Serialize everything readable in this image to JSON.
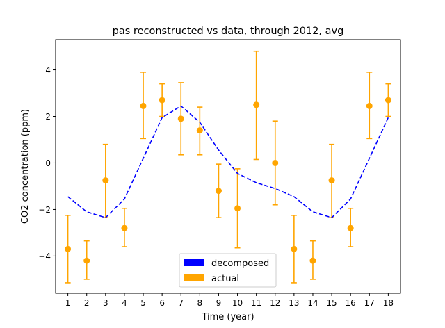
{
  "chart_data": {
    "type": "line",
    "title": "pas reconstructed vs data, through 2012, avg",
    "xlabel": "Time (year)",
    "ylabel": "CO2 concentration (ppm)",
    "xlim": [
      0.35,
      18.65
    ],
    "ylim": [
      -5.6,
      5.3
    ],
    "x": [
      1,
      2,
      3,
      4,
      5,
      6,
      7,
      8,
      9,
      10,
      11,
      12,
      13,
      14,
      15,
      16,
      17,
      18
    ],
    "x_ticks": [
      "1",
      "2",
      "3",
      "4",
      "5",
      "6",
      "7",
      "8",
      "9",
      "10",
      "11",
      "12",
      "13",
      "14",
      "15",
      "16",
      "17",
      "18"
    ],
    "y_ticks": [
      {
        "value": -4,
        "label": "−4"
      },
      {
        "value": -2,
        "label": "−2"
      },
      {
        "value": 0,
        "label": "0"
      },
      {
        "value": 2,
        "label": "2"
      },
      {
        "value": 4,
        "label": "4"
      }
    ],
    "grid": false,
    "legend_position": "bottom-center",
    "series": [
      {
        "name": "decomposed",
        "style": "dashed-line",
        "color": "#0000ff",
        "values": [
          -1.45,
          -2.1,
          -2.35,
          -1.55,
          0.2,
          1.95,
          2.45,
          1.75,
          0.55,
          -0.45,
          -0.85,
          -1.1,
          -1.45,
          -2.1,
          -2.35,
          -1.55,
          0.2,
          1.95
        ]
      },
      {
        "name": "actual",
        "style": "points-with-errorbars",
        "color": "#ffa500",
        "values": [
          -3.7,
          -4.2,
          -0.75,
          -2.8,
          2.45,
          2.7,
          1.9,
          1.4,
          -1.2,
          -1.95,
          2.5,
          0.0,
          -3.7,
          -4.2,
          -0.75,
          -2.8,
          2.45,
          2.7
        ],
        "lower": [
          -5.15,
          -5.0,
          -2.35,
          -3.6,
          1.05,
          2.0,
          0.35,
          0.35,
          -2.35,
          -3.65,
          0.15,
          -1.8,
          -5.15,
          -5.0,
          -2.35,
          -3.6,
          1.05,
          2.0
        ],
        "upper": [
          -2.25,
          -3.35,
          0.8,
          -1.95,
          3.9,
          3.4,
          3.45,
          2.4,
          -0.05,
          -0.25,
          4.8,
          1.8,
          -2.25,
          -3.35,
          0.8,
          -1.95,
          3.9,
          3.4
        ]
      }
    ]
  }
}
